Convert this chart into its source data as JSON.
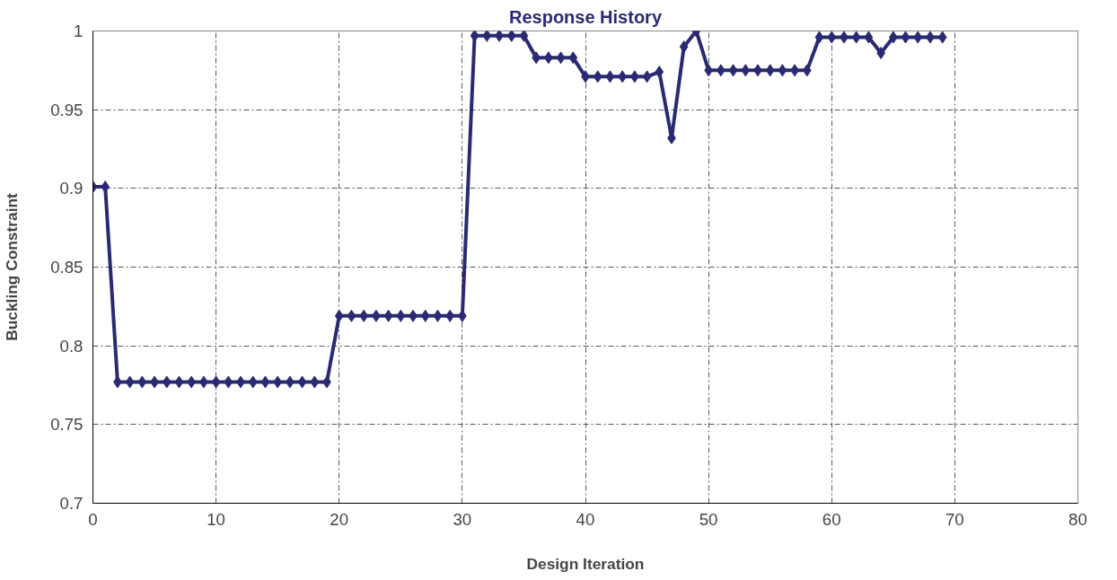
{
  "chart_data": {
    "type": "line",
    "title": "Response History",
    "xlabel": "Design Iteration",
    "ylabel": "Buckling Constraint",
    "x": [
      0,
      1,
      2,
      3,
      4,
      5,
      6,
      7,
      8,
      9,
      10,
      11,
      12,
      13,
      14,
      15,
      16,
      17,
      18,
      19,
      20,
      21,
      22,
      23,
      24,
      25,
      26,
      27,
      28,
      29,
      30,
      31,
      32,
      33,
      34,
      35,
      36,
      37,
      38,
      39,
      40,
      41,
      42,
      43,
      44,
      45,
      46,
      47,
      48,
      49,
      50,
      51,
      52,
      53,
      54,
      55,
      56,
      57,
      58,
      59,
      60,
      61,
      62,
      63,
      64,
      65,
      66,
      67,
      68,
      69
    ],
    "series": [
      {
        "color": "#2a2a72",
        "values": [
          0.901,
          0.901,
          0.777,
          0.777,
          0.777,
          0.777,
          0.777,
          0.777,
          0.777,
          0.777,
          0.777,
          0.777,
          0.777,
          0.777,
          0.777,
          0.777,
          0.777,
          0.777,
          0.777,
          0.777,
          0.819,
          0.819,
          0.819,
          0.819,
          0.819,
          0.819,
          0.819,
          0.819,
          0.819,
          0.819,
          0.819,
          0.997,
          0.997,
          0.997,
          0.997,
          0.997,
          0.983,
          0.983,
          0.983,
          0.983,
          0.971,
          0.971,
          0.971,
          0.971,
          0.971,
          0.971,
          0.974,
          0.932,
          0.99,
          1.0,
          0.975,
          0.975,
          0.975,
          0.975,
          0.975,
          0.975,
          0.975,
          0.975,
          0.975,
          0.996,
          0.996,
          0.996,
          0.996,
          0.996,
          0.986,
          0.996,
          0.996,
          0.996,
          0.996,
          0.996
        ]
      }
    ],
    "xlim": [
      0,
      80
    ],
    "xticks": [
      0,
      10,
      20,
      30,
      40,
      50,
      60,
      70,
      80
    ],
    "ylim": [
      0.7,
      1
    ],
    "yticks": [
      0.7,
      0.75,
      0.8,
      0.85,
      0.9,
      0.95,
      1
    ],
    "grid": true,
    "marker": "diamond",
    "line_style": "solid"
  }
}
